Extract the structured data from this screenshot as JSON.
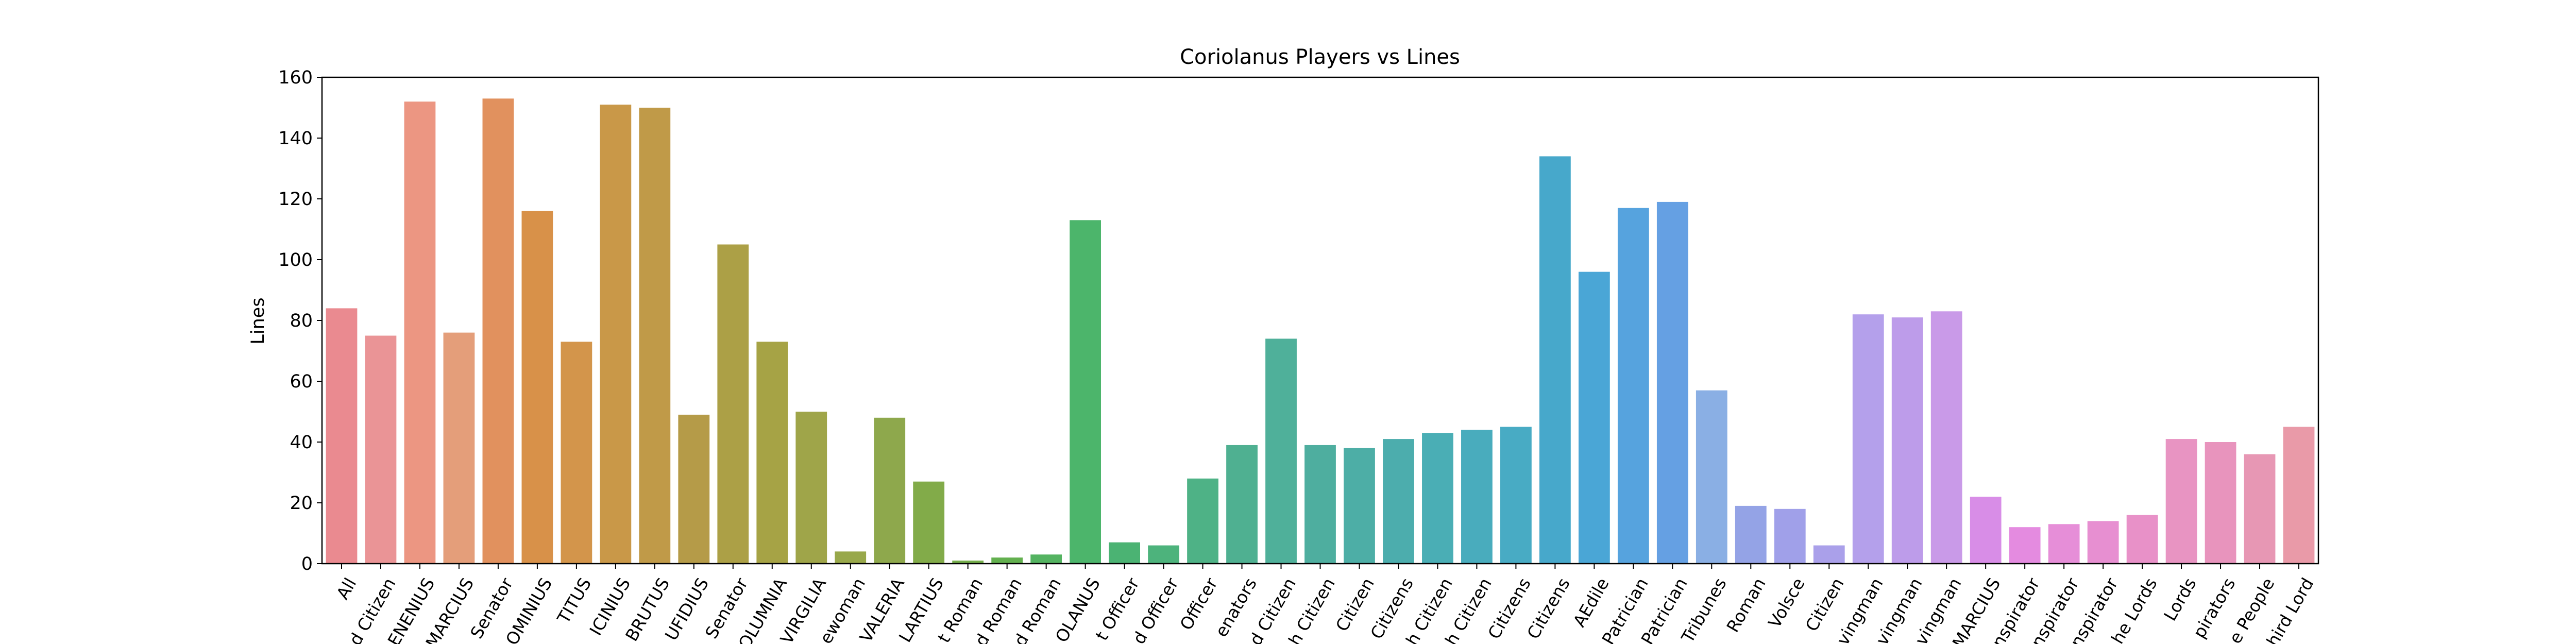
{
  "chart_data": {
    "type": "bar",
    "title": "Coriolanus Players vs Lines",
    "xlabel": "",
    "ylabel": "Lines",
    "ylim": [
      0,
      160
    ],
    "yticks": [
      0,
      20,
      40,
      60,
      80,
      100,
      120,
      140,
      160
    ],
    "grid": false,
    "categories": [
      "All",
      "d Citizen",
      "ENENIUS",
      "MARCIUS",
      "Senator",
      "OMINIUS",
      "TITUS",
      "ICINIUS",
      "BRUTUS",
      "UFIDIUS",
      "Senator",
      "OLUMNIA",
      "VIRGILIA",
      "ewoman",
      "VALERIA",
      "LARTIUS",
      "t Roman",
      "d Roman",
      "d Roman",
      "OLANUS",
      "t Officer",
      "d Officer",
      "Officer",
      "enators",
      "d Citizen",
      "h Citizen",
      "Citizen",
      "Citizens",
      "h Citizen",
      "h Citizen",
      "Citizens",
      "Citizens",
      "AEdile",
      "Patrician",
      "Patrician",
      "Tribunes",
      "Roman",
      "Volsce",
      "Citizen",
      "vingman",
      "vingman",
      "vingman",
      "MARCIUS",
      "nspirator",
      "nspirator",
      "nspirator",
      "he Lords",
      "Lords",
      "pirators",
      "e People",
      "hird Lord"
    ],
    "values": [
      84,
      75,
      152,
      76,
      153,
      116,
      73,
      151,
      150,
      49,
      105,
      73,
      50,
      4,
      48,
      27,
      1,
      2,
      3,
      113,
      7,
      6,
      28,
      39,
      74,
      39,
      38,
      41,
      43,
      44,
      45,
      134,
      96,
      117,
      119,
      57,
      19,
      18,
      6,
      82,
      81,
      83,
      22,
      12,
      13,
      14,
      16,
      41,
      40,
      36,
      45
    ],
    "colors": [
      "#ea8a90",
      "#ea9496",
      "#ec9682",
      "#e49e7a",
      "#e1915e",
      "#d89149",
      "#d3954b",
      "#c99848",
      "#c09a48",
      "#b59b48",
      "#aca046",
      "#a6a345",
      "#9fa549",
      "#98a84a",
      "#8ea84c",
      "#82ab49",
      "#74ad4b",
      "#63b04f",
      "#54b361",
      "#4cb56b",
      "#4bb373",
      "#4db37c",
      "#4eb286",
      "#4fb091",
      "#4fb09a",
      "#4eae9f",
      "#4daea6",
      "#4cadad",
      "#4aaeb5",
      "#49acbd",
      "#48abc4",
      "#47a8cb",
      "#4aa6d6",
      "#56a3de",
      "#65a0e3",
      "#8aafe4",
      "#94a3e6",
      "#a0a0e9",
      "#aaa0ea",
      "#b4a0eb",
      "#bd9cea",
      "#c99ae8",
      "#d88de7",
      "#e48be0",
      "#e68ed8",
      "#e78fd1",
      "#e891c8",
      "#e894c2",
      "#e894bd",
      "#e797b4",
      "#e99aa8"
    ]
  }
}
